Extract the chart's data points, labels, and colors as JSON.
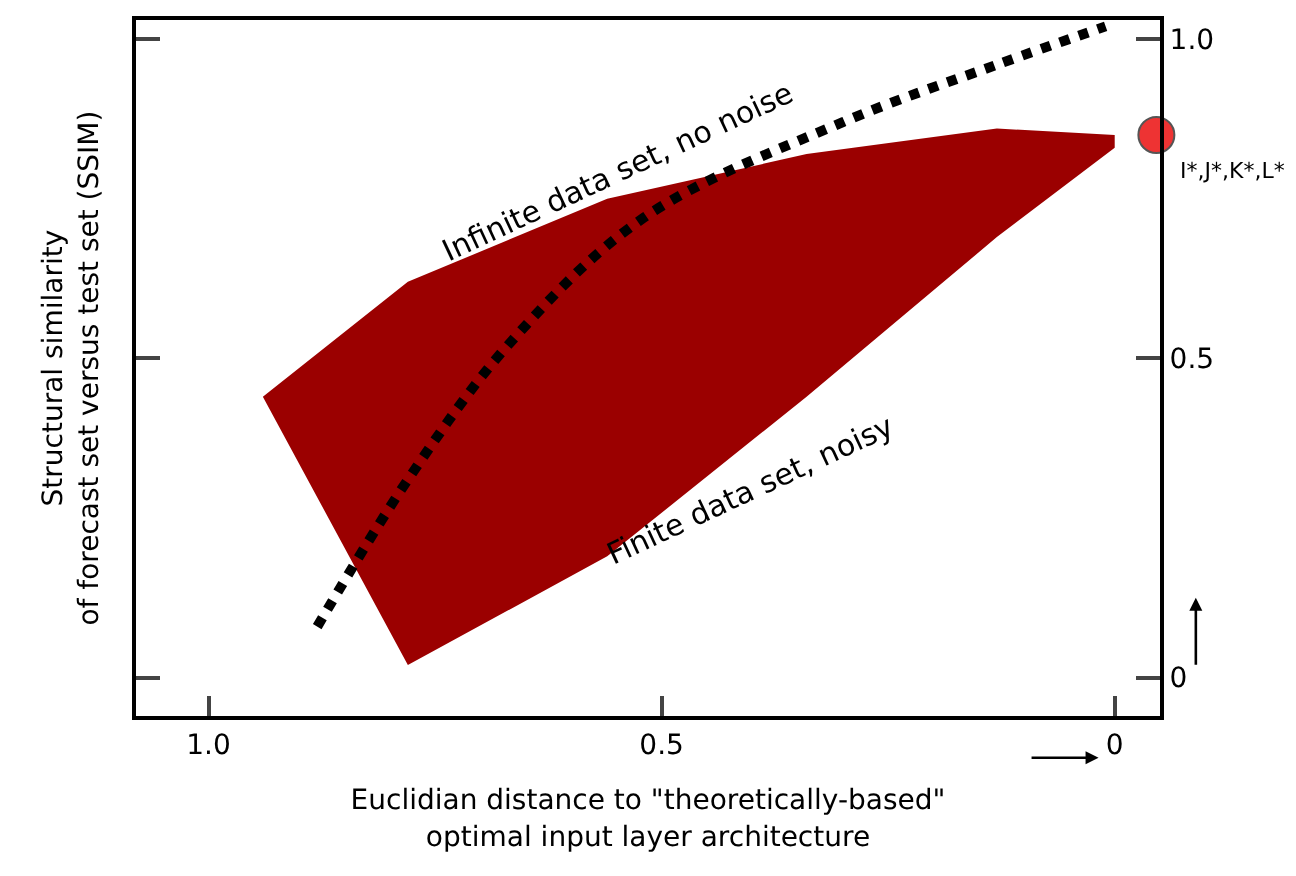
{
  "chart_data": {
    "type": "line",
    "xlabel": "Euclidian distance to \"theoretically-based\"\noptimal input layer architecture",
    "ylabel": "Structural similarity\nof forecast set versus test set (SSIM)",
    "xlim": [
      1.08,
      -0.05
    ],
    "xticks": [
      {
        "value": 1.0,
        "label": "1.0"
      },
      0.5,
      0
    ],
    "ylim": [
      -0.06,
      1.03
    ],
    "yticks": [
      0,
      0.5,
      {
        "value": 1.0,
        "label": "1.0"
      }
    ],
    "series": [
      {
        "type": "area",
        "color": "#9b0000",
        "x": [
          0.94,
          0.78,
          0.56,
          0.34,
          0.13,
          0.0,
          0.0,
          0.13,
          0.34,
          0.56,
          0.78
        ],
        "values": [
          0.44,
          0.62,
          0.75,
          0.82,
          0.86,
          0.85,
          0.83,
          0.69,
          0.44,
          0.19,
          0.02
        ]
      },
      {
        "color": "#000000",
        "line_style": "dotted",
        "x": [
          0.88,
          0.78,
          0.67,
          0.52,
          0.3,
          0.13,
          0.01
        ],
        "values": [
          0.08,
          0.31,
          0.52,
          0.72,
          0.87,
          0.96,
          1.02
        ]
      },
      {
        "type": "scatter",
        "color": "#ee3333",
        "marker": "circle",
        "x": [
          -0.046
        ],
        "values": [
          0.85
        ]
      }
    ],
    "annotations": [
      "Infinite data set, no noise",
      "Finite data set, noisy",
      {
        "text": "I*,J*,K*,L*",
        "x": -0.046,
        "y": 0.85
      }
    ]
  }
}
